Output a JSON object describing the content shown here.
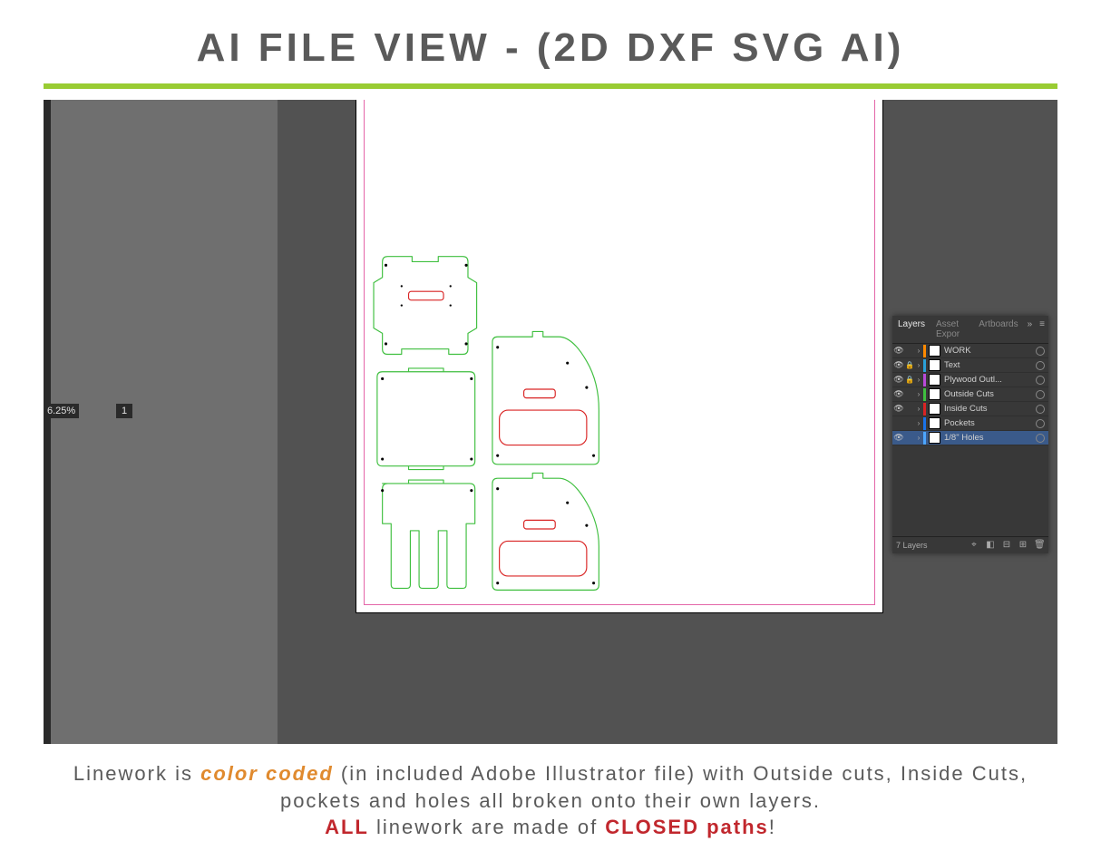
{
  "title": "AI FILE VIEW - (2D DXF SVG AI)",
  "accent_rule_color": "#99cc33",
  "workspace": {
    "bg_dark": "#525252",
    "bg_light": "#6f6f6f",
    "artboard_bg": "#ffffff",
    "artboard_outline": "#e466a8",
    "zoom_label": "6.25%",
    "artboard_number": "1"
  },
  "linework": {
    "outside_cut_color": "#3fbf3f",
    "inside_cut_color": "#d92424",
    "hole_color": "#000000",
    "stroke_width": 1.2
  },
  "panel": {
    "tabs": [
      "Layers",
      "Asset Expor",
      "Artboards"
    ],
    "active_tab_index": 0,
    "layers": [
      {
        "name": "WORK",
        "color": "#ff8a00",
        "visible": true,
        "locked": false
      },
      {
        "name": "Text",
        "color": "#2aa0d8",
        "visible": true,
        "locked": true
      },
      {
        "name": "Plywood Outl...",
        "color": "#b94ad8",
        "visible": true,
        "locked": true
      },
      {
        "name": "Outside Cuts",
        "color": "#3fbf3f",
        "visible": true,
        "locked": false
      },
      {
        "name": "Inside Cuts",
        "color": "#d92424",
        "visible": true,
        "locked": false
      },
      {
        "name": "Pockets",
        "color": "#1a73e8",
        "visible": false,
        "locked": false
      },
      {
        "name": "1/8\" Holes",
        "color": "#4da6ff",
        "visible": true,
        "locked": false,
        "selected": true
      }
    ],
    "footer_count": "7 Layers"
  },
  "caption": {
    "line1a": "Linework is ",
    "line1_orange": "color coded",
    "line1b": " (in included Adobe Illustrator file) with Outside cuts, Inside Cuts, pockets and holes all broken onto their own layers.",
    "line2a": "ALL",
    "line2b": " linework are made of ",
    "line2c": "CLOSED paths",
    "line2d": "!"
  }
}
